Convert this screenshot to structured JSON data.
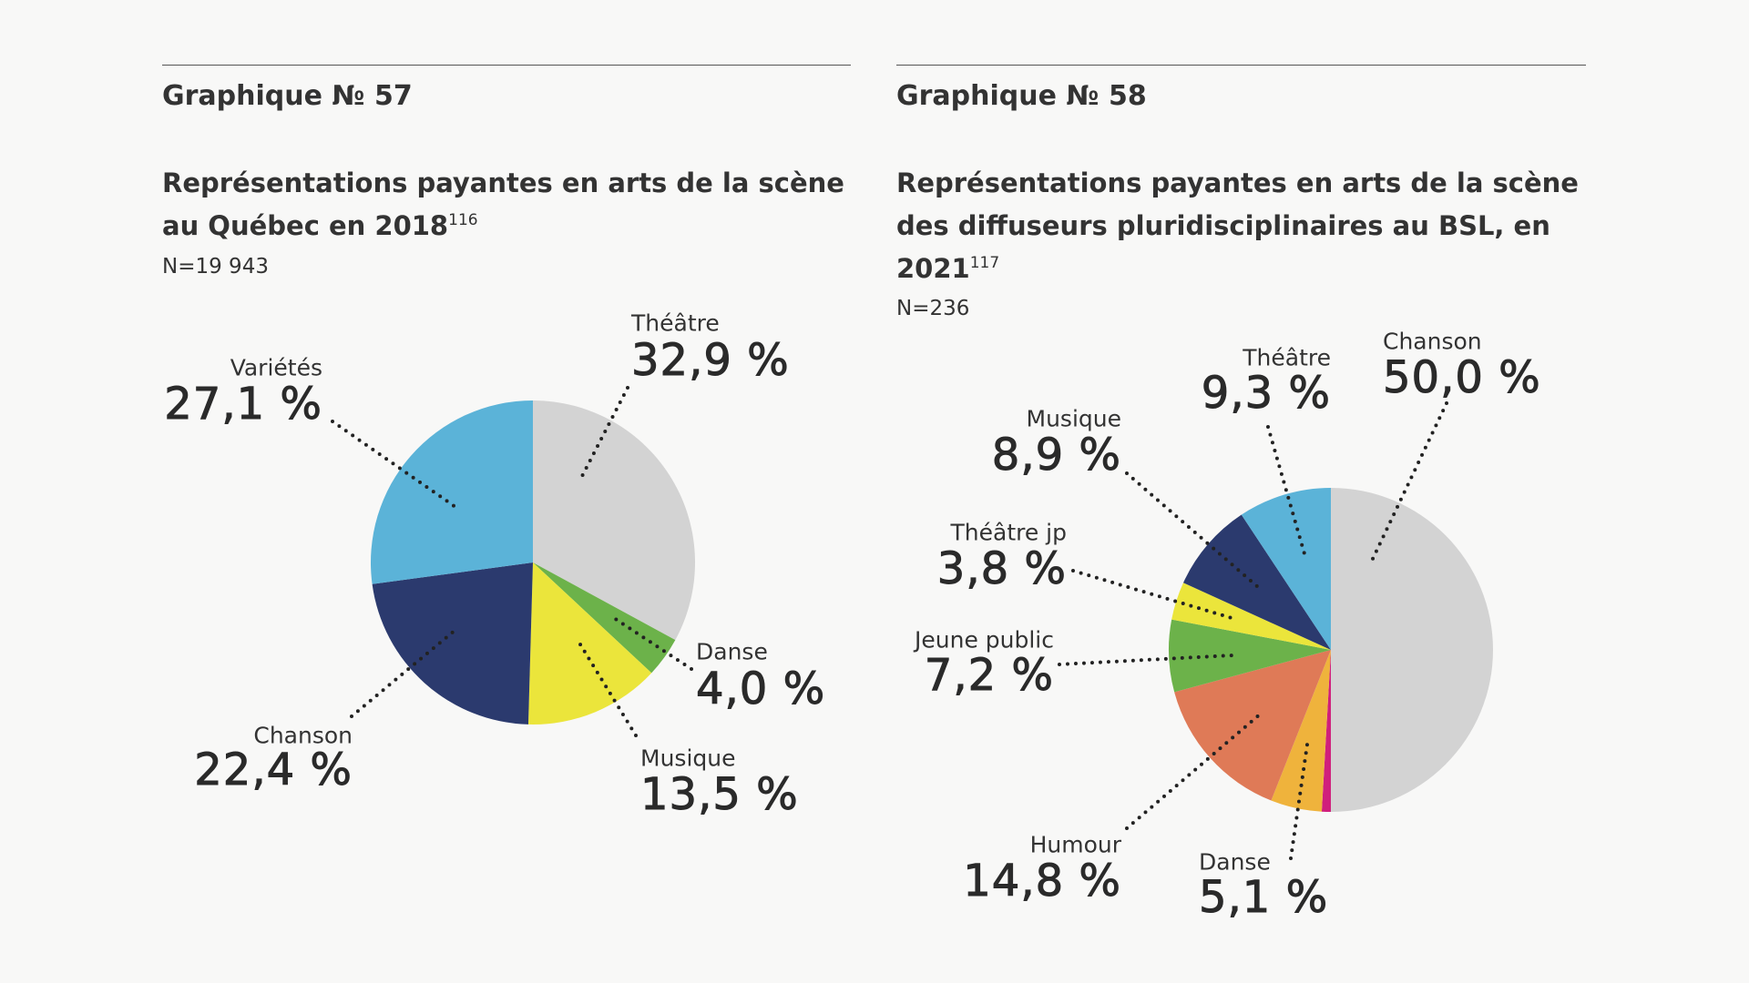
{
  "chart_data": [
    {
      "type": "pie",
      "label": "Graphique № 57",
      "title": "Représentations payantes en arts de la scène au Québec en 2018",
      "footnote": "116",
      "n": "N=19 943",
      "slices": [
        {
          "name": "Théâtre",
          "value": 32.9,
          "label": "32,9 %",
          "color": "#d3d3d3"
        },
        {
          "name": "Danse",
          "value": 4.0,
          "label": "4,0 %",
          "color": "#6cb24a"
        },
        {
          "name": "Musique",
          "value": 13.5,
          "label": "13,5 %",
          "color": "#ebe53b"
        },
        {
          "name": "Chanson",
          "value": 22.4,
          "label": "22,4 %",
          "color": "#2b3a6e"
        },
        {
          "name": "Variétés",
          "value": 27.1,
          "label": "27,1 %",
          "color": "#5bb3d8"
        }
      ]
    },
    {
      "type": "pie",
      "label": "Graphique № 58",
      "title": "Représentations payantes en arts de la scène des diffuseurs pluridisciplinaires au BSL, en 2021",
      "footnote": "117",
      "n": "N=236",
      "slices": [
        {
          "name": "Chanson",
          "value": 50.0,
          "label": "50,0 %",
          "color": "#d3d3d3"
        },
        {
          "name": "",
          "value": 0.9,
          "label": "",
          "color": "#d01f7c"
        },
        {
          "name": "Danse",
          "value": 5.1,
          "label": "5,1 %",
          "color": "#efb33c"
        },
        {
          "name": "Humour",
          "value": 14.8,
          "label": "14,8 %",
          "color": "#df7a57"
        },
        {
          "name": "Jeune public",
          "value": 7.2,
          "label": "7,2 %",
          "color": "#6cb24a"
        },
        {
          "name": "Théâtre jp",
          "value": 3.8,
          "label": "3,8 %",
          "color": "#ebe53b"
        },
        {
          "name": "Musique",
          "value": 8.9,
          "label": "8,9 %",
          "color": "#2b3a6e"
        },
        {
          "name": "Théâtre",
          "value": 9.3,
          "label": "9,3 %",
          "color": "#5bb3d8"
        }
      ]
    }
  ]
}
